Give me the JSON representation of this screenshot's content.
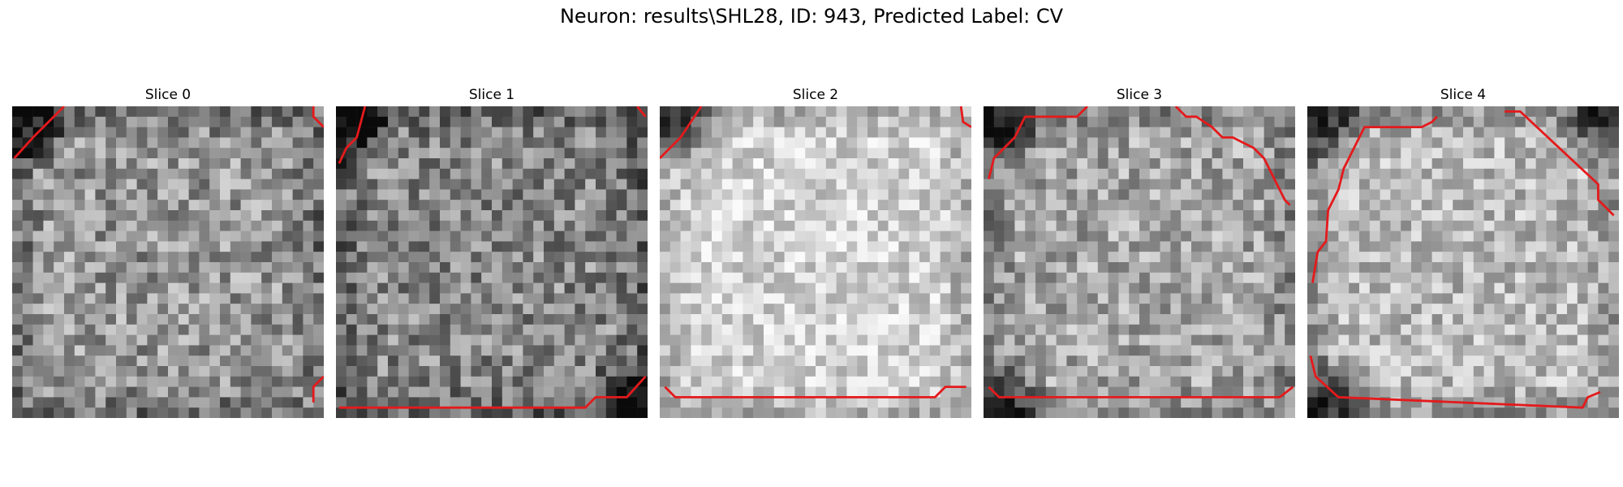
{
  "figure": {
    "title": "Neuron: results\\SHL28, ID: 943, Predicted Label: CV",
    "contour_color": "#e41a1c"
  },
  "panels": [
    {
      "title": "Slice 0",
      "seed": 11,
      "base": 150,
      "range": 120,
      "dark_corners": [
        "tl"
      ],
      "mean_shift": 0,
      "contours": [
        [
          [
            0.2,
            5
          ],
          [
            2,
            3
          ],
          [
            3,
            2
          ],
          [
            5,
            0
          ]
        ],
        [
          [
            29,
            0
          ],
          [
            29,
            1
          ],
          [
            30,
            2
          ]
        ],
        [
          [
            30,
            26
          ],
          [
            29,
            27
          ],
          [
            29,
            28.5
          ]
        ]
      ]
    },
    {
      "title": "Slice 1",
      "seed": 23,
      "base": 140,
      "range": 120,
      "dark_corners": [
        "tl",
        "br"
      ],
      "mean_shift": -5,
      "contours": [
        [
          [
            0.3,
            5.5
          ],
          [
            1,
            4
          ],
          [
            2,
            3
          ],
          [
            2.8,
            0
          ]
        ],
        [
          [
            29,
            0
          ],
          [
            29.8,
            1
          ]
        ],
        [
          [
            0.3,
            29
          ],
          [
            24,
            29
          ],
          [
            25,
            28
          ],
          [
            28,
            28
          ],
          [
            29.8,
            26
          ]
        ]
      ]
    },
    {
      "title": "Slice 2",
      "seed": 37,
      "base": 190,
      "range": 90,
      "dark_corners": [
        "tl"
      ],
      "mean_shift": 20,
      "contours": [
        [
          [
            0,
            5
          ],
          [
            2,
            3
          ],
          [
            4,
            0
          ]
        ],
        [
          [
            29,
            0
          ],
          [
            29.2,
            1.5
          ],
          [
            30,
            2
          ]
        ],
        [
          [
            0.5,
            27
          ],
          [
            1.5,
            28
          ],
          [
            26.5,
            28
          ],
          [
            27.5,
            27
          ],
          [
            29.5,
            27
          ]
        ]
      ]
    },
    {
      "title": "Slice 3",
      "seed": 51,
      "base": 160,
      "range": 110,
      "dark_corners": [
        "tl",
        "bl"
      ],
      "mean_shift": 5,
      "contours": [
        [
          [
            0.5,
            7
          ],
          [
            1,
            5
          ],
          [
            3,
            3
          ],
          [
            4,
            1
          ],
          [
            9,
            1
          ],
          [
            10,
            0
          ]
        ],
        [
          [
            18.5,
            0
          ],
          [
            19.5,
            1
          ],
          [
            20.5,
            1
          ],
          [
            22,
            2
          ],
          [
            23,
            3
          ],
          [
            24,
            3
          ],
          [
            26,
            4
          ],
          [
            27,
            5
          ],
          [
            27.5,
            6
          ],
          [
            28.5,
            8
          ],
          [
            29,
            9
          ],
          [
            29.5,
            9.5
          ]
        ],
        [
          [
            0.5,
            27
          ],
          [
            1.5,
            28
          ],
          [
            28.5,
            28
          ],
          [
            29.8,
            27
          ]
        ]
      ]
    },
    {
      "title": "Slice 4",
      "seed": 67,
      "base": 175,
      "range": 100,
      "dark_corners": [
        "tl",
        "tr",
        "bl"
      ],
      "mean_shift": 10,
      "contours": [
        [
          [
            0.5,
            17
          ],
          [
            1,
            14
          ],
          [
            1.8,
            13
          ],
          [
            2,
            10
          ],
          [
            3,
            8
          ],
          [
            3.5,
            6
          ],
          [
            4,
            5
          ],
          [
            5.5,
            2
          ],
          [
            11,
            2
          ],
          [
            12,
            1.5
          ],
          [
            12.5,
            1
          ]
        ],
        [
          [
            19,
            0.5
          ],
          [
            20.5,
            0.5
          ],
          [
            28,
            7.5
          ],
          [
            28,
            9
          ],
          [
            29.5,
            10.5
          ]
        ],
        [
          [
            0.3,
            24
          ],
          [
            0.8,
            26
          ],
          [
            3,
            28
          ],
          [
            26.5,
            29
          ],
          [
            27,
            28
          ],
          [
            28.2,
            27.5
          ]
        ]
      ]
    }
  ]
}
